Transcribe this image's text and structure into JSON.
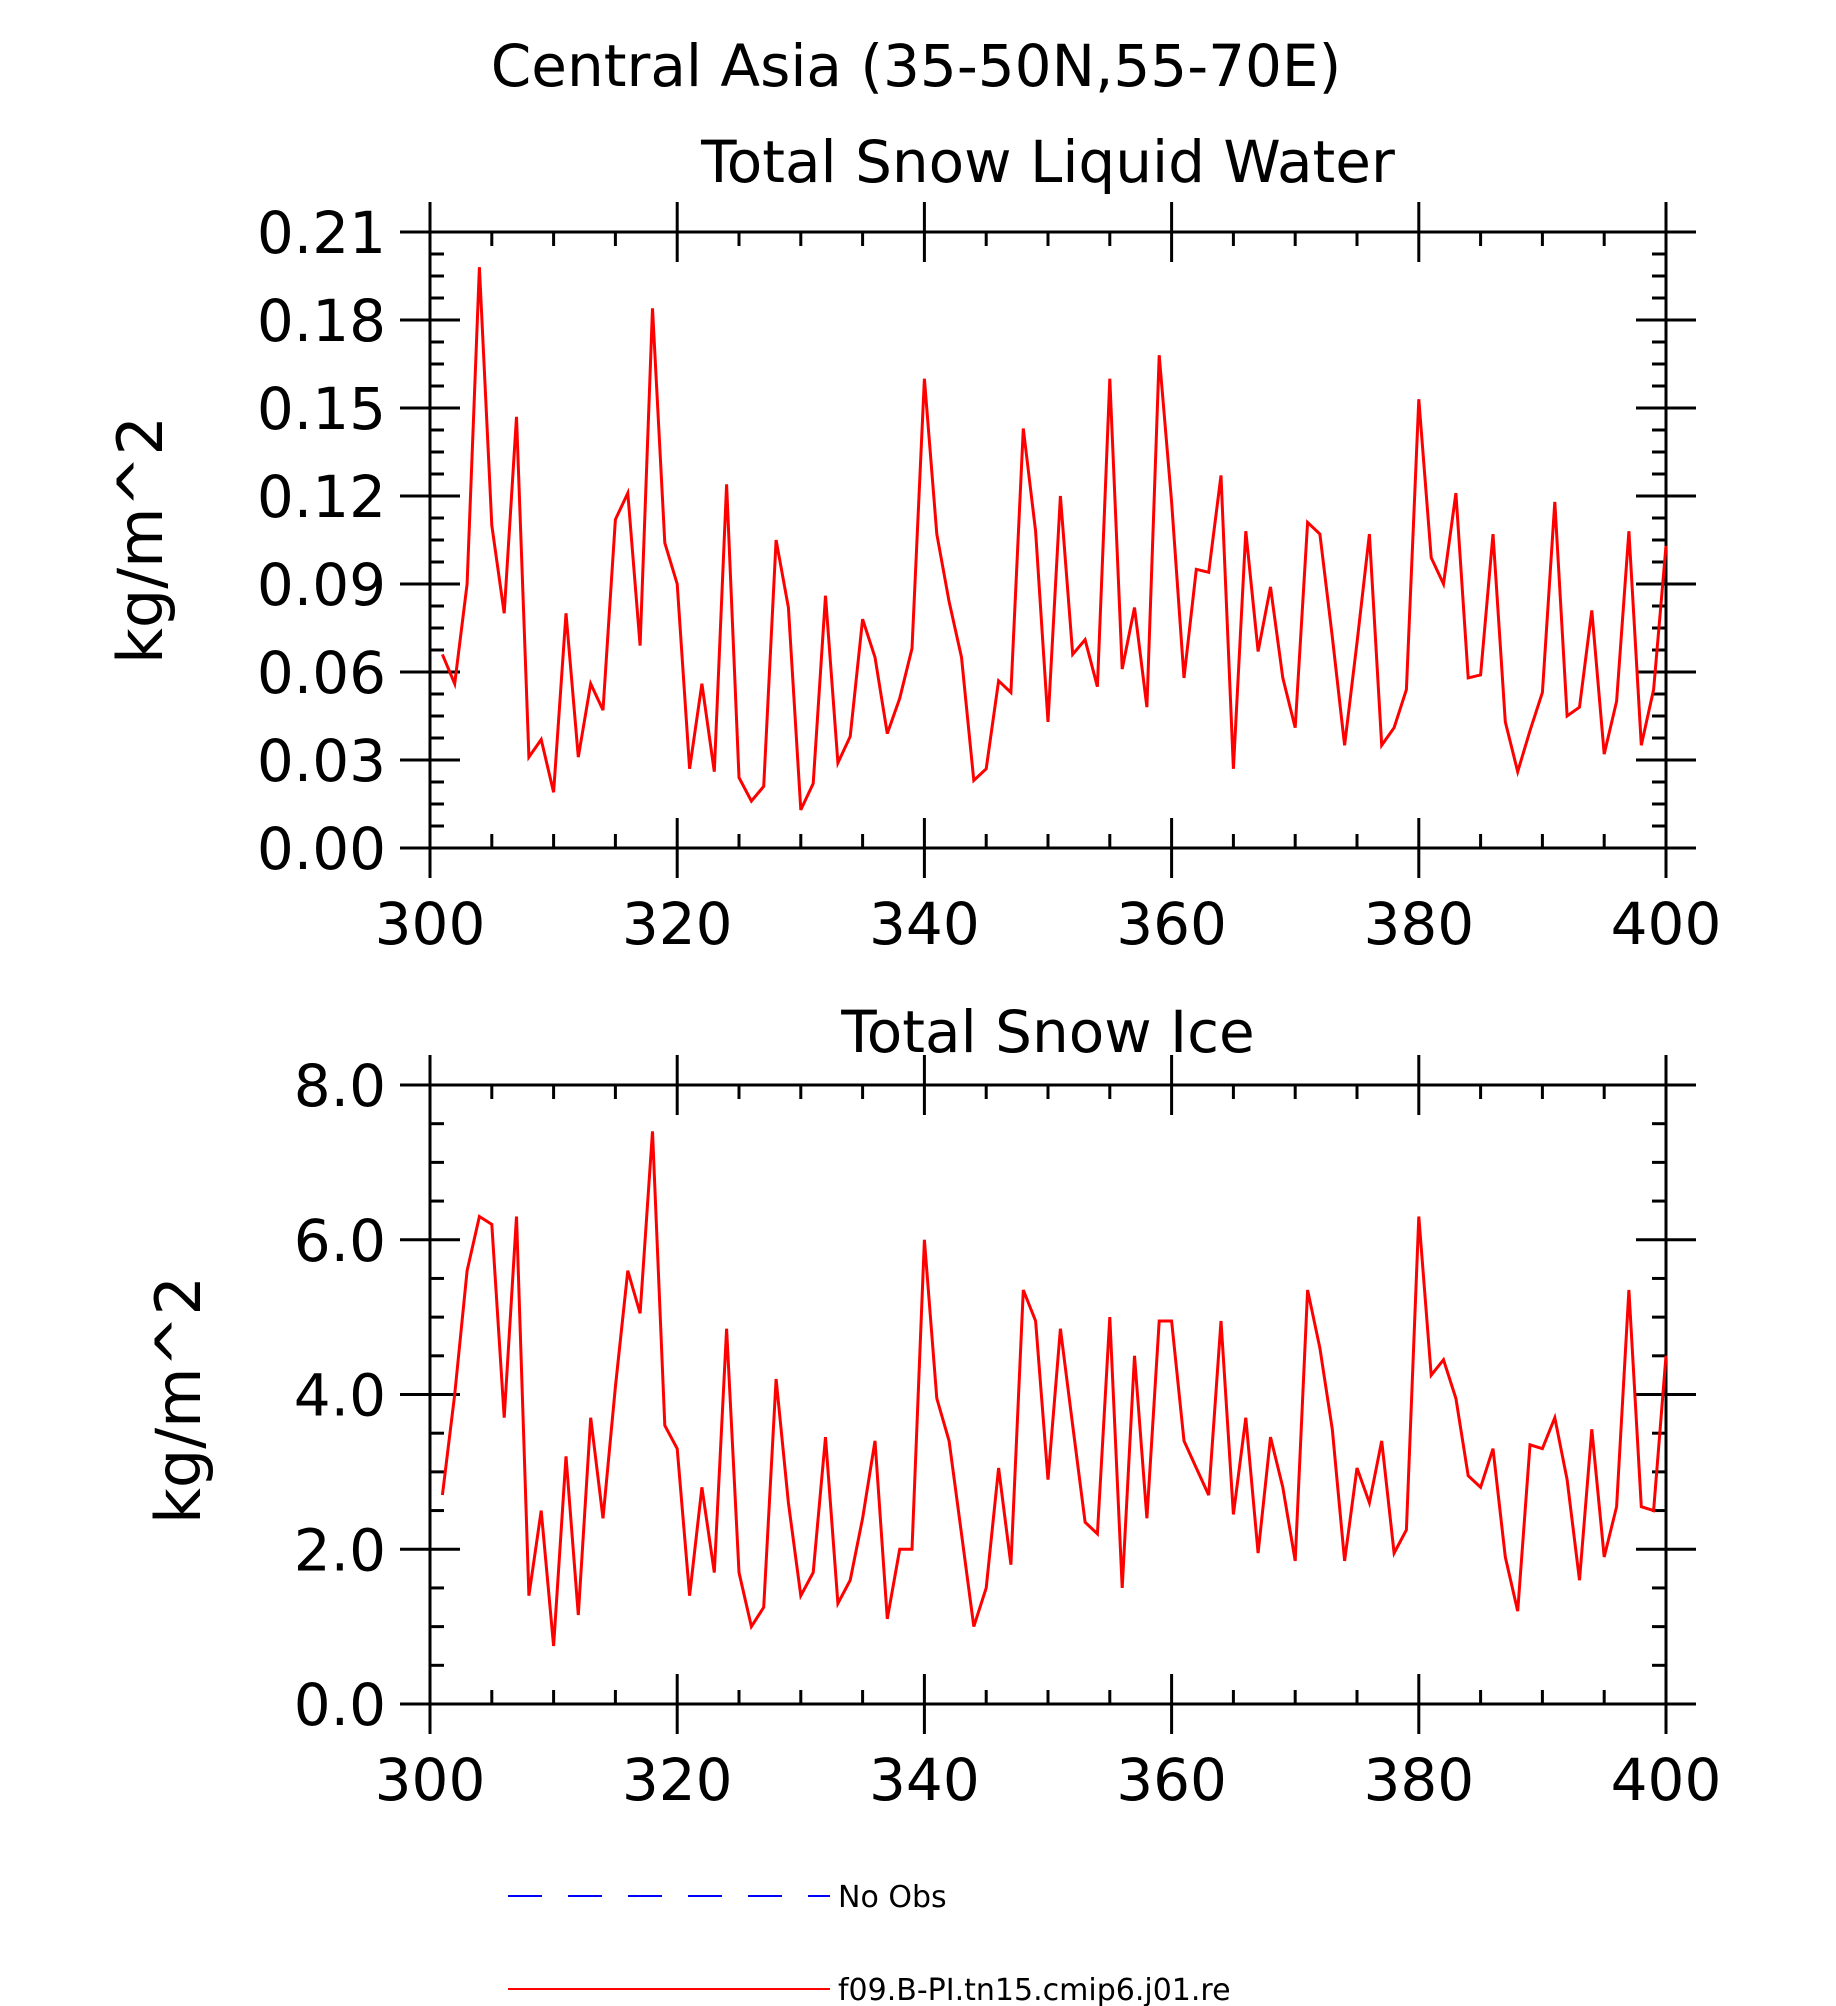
{
  "main_title": "Central Asia (35-50N,55-70E)",
  "colors": {
    "model": "#ff0000",
    "obs": "#0000ff",
    "axis": "#000000"
  },
  "legend": {
    "obs_label": "No Obs",
    "model_label": "f09.B-PI.tn15.cmip6.j01.re"
  },
  "chart_data": [
    {
      "type": "line",
      "title": "Total Snow Liquid Water",
      "xlabel": "",
      "ylabel": "kg/m^2",
      "xlim": [
        300,
        400
      ],
      "ylim": [
        0,
        0.21
      ],
      "xticks": [
        300,
        320,
        340,
        360,
        380,
        400
      ],
      "xtick_labels": [
        "300",
        "320",
        "340",
        "360",
        "380",
        "400"
      ],
      "yticks": [
        0,
        0.03,
        0.06,
        0.09,
        0.12,
        0.15,
        0.18,
        0.21
      ],
      "ytick_labels": [
        "0.00",
        "0.03",
        "0.06",
        "0.09",
        "0.12",
        "0.15",
        "0.18",
        "0.21"
      ],
      "grid": false,
      "series": [
        {
          "color": "#ff0000",
          "x": [
            301,
            302,
            303,
            304,
            305,
            306,
            307,
            308,
            309,
            310,
            311,
            312,
            313,
            314,
            315,
            316,
            317,
            318,
            319,
            320,
            321,
            322,
            323,
            324,
            325,
            326,
            327,
            328,
            329,
            330,
            331,
            332,
            333,
            334,
            335,
            336,
            337,
            338,
            339,
            340,
            341,
            342,
            343,
            344,
            345,
            346,
            347,
            348,
            349,
            350,
            351,
            352,
            353,
            354,
            355,
            356,
            357,
            358,
            359,
            360,
            361,
            362,
            363,
            364,
            365,
            366,
            367,
            368,
            369,
            370,
            371,
            372,
            373,
            374,
            375,
            376,
            377,
            378,
            379,
            380,
            381,
            382,
            383,
            384,
            385,
            386,
            387,
            388,
            389,
            390,
            391,
            392,
            393,
            394,
            395,
            396,
            397,
            398,
            399,
            400
          ],
          "y": [
            0.066,
            0.056,
            0.09,
            0.198,
            0.11,
            0.08,
            0.147,
            0.031,
            0.037,
            0.019,
            0.08,
            0.031,
            0.056,
            0.047,
            0.112,
            0.121,
            0.069,
            0.184,
            0.104,
            0.09,
            0.027,
            0.056,
            0.026,
            0.124,
            0.024,
            0.016,
            0.021,
            0.105,
            0.082,
            0.013,
            0.022,
            0.086,
            0.029,
            0.038,
            0.078,
            0.065,
            0.039,
            0.051,
            0.068,
            0.16,
            0.107,
            0.084,
            0.065,
            0.023,
            0.027,
            0.057,
            0.053,
            0.143,
            0.108,
            0.043,
            0.12,
            0.066,
            0.071,
            0.055,
            0.16,
            0.061,
            0.082,
            0.048,
            0.168,
            0.118,
            0.058,
            0.095,
            0.094,
            0.127,
            0.027,
            0.108,
            0.067,
            0.089,
            0.058,
            0.041,
            0.111,
            0.107,
            0.072,
            0.035,
            0.07,
            0.107,
            0.035,
            0.041,
            0.054,
            0.153,
            0.099,
            0.09,
            0.121,
            0.058,
            0.059,
            0.107,
            0.043,
            0.026,
            0.04,
            0.053,
            0.118,
            0.045,
            0.048,
            0.081,
            0.032,
            0.05,
            0.108,
            0.035,
            0.054,
            0.103
          ]
        }
      ]
    },
    {
      "type": "line",
      "title": "Total Snow Ice",
      "xlabel": "",
      "ylabel": "kg/m^2",
      "xlim": [
        300,
        400
      ],
      "ylim": [
        0,
        8
      ],
      "xticks": [
        300,
        320,
        340,
        360,
        380,
        400
      ],
      "xtick_labels": [
        "300",
        "320",
        "340",
        "360",
        "380",
        "400"
      ],
      "yticks": [
        0,
        2,
        4,
        6,
        8
      ],
      "ytick_labels": [
        "0.0",
        "2.0",
        "4.0",
        "6.0",
        "8.0"
      ],
      "grid": false,
      "series": [
        {
          "color": "#ff0000",
          "x": [
            301,
            302,
            303,
            304,
            305,
            306,
            307,
            308,
            309,
            310,
            311,
            312,
            313,
            314,
            315,
            316,
            317,
            318,
            319,
            320,
            321,
            322,
            323,
            324,
            325,
            326,
            327,
            328,
            329,
            330,
            331,
            332,
            333,
            334,
            335,
            336,
            337,
            338,
            339,
            340,
            341,
            342,
            343,
            344,
            345,
            346,
            347,
            348,
            349,
            350,
            351,
            352,
            353,
            354,
            355,
            356,
            357,
            358,
            359,
            360,
            361,
            362,
            363,
            364,
            365,
            366,
            367,
            368,
            369,
            370,
            371,
            372,
            373,
            374,
            375,
            376,
            377,
            378,
            379,
            380,
            381,
            382,
            383,
            384,
            385,
            386,
            387,
            388,
            389,
            390,
            391,
            392,
            393,
            394,
            395,
            396,
            397,
            398,
            399,
            400
          ],
          "y": [
            2.7,
            4.0,
            5.6,
            6.3,
            6.2,
            3.7,
            6.3,
            1.4,
            2.5,
            0.75,
            3.2,
            1.15,
            3.7,
            2.4,
            4.1,
            5.6,
            5.05,
            7.4,
            3.6,
            3.3,
            1.4,
            2.8,
            1.7,
            4.85,
            1.7,
            1.0,
            1.25,
            4.2,
            2.6,
            1.4,
            1.7,
            3.45,
            1.3,
            1.6,
            2.4,
            3.4,
            1.1,
            2.0,
            2.0,
            6.0,
            3.95,
            3.4,
            2.2,
            1.0,
            1.5,
            3.05,
            1.8,
            5.35,
            4.95,
            2.9,
            4.85,
            3.6,
            2.35,
            2.2,
            5.0,
            1.5,
            4.5,
            2.4,
            4.95,
            4.95,
            3.4,
            3.05,
            2.7,
            4.95,
            2.45,
            3.7,
            1.95,
            3.45,
            2.8,
            1.85,
            5.35,
            4.6,
            3.55,
            1.85,
            3.05,
            2.6,
            3.4,
            1.95,
            2.25,
            6.3,
            4.25,
            4.45,
            3.95,
            2.95,
            2.8,
            3.3,
            1.9,
            1.2,
            3.35,
            3.3,
            3.7,
            2.9,
            1.6,
            3.55,
            1.9,
            2.55,
            5.35,
            2.55,
            2.5,
            4.5
          ]
        }
      ]
    }
  ]
}
